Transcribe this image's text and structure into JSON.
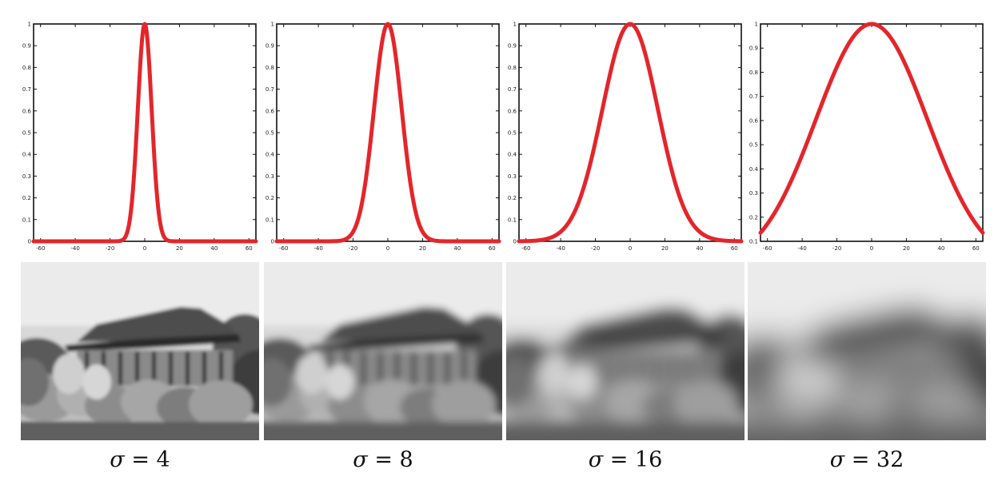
{
  "chart_data": [
    {
      "type": "line",
      "title": "",
      "xlabel": "",
      "ylabel": "",
      "function": "gaussian",
      "sigma": 4,
      "xlim": [
        -64,
        64
      ],
      "ylim": [
        0,
        1
      ],
      "x_ticks": [
        "-60",
        "-40",
        "-20",
        "0",
        "20",
        "40",
        "60"
      ],
      "y_ticks": [
        "0",
        "0.1",
        "0.2",
        "0.3",
        "0.4",
        "0.5",
        "0.6",
        "0.7",
        "0.8",
        "0.9",
        "1"
      ],
      "line_color": "#e3262b",
      "caption_symbol": "σ",
      "caption_value": "= 4"
    },
    {
      "type": "line",
      "title": "",
      "xlabel": "",
      "ylabel": "",
      "function": "gaussian",
      "sigma": 8,
      "xlim": [
        -64,
        64
      ],
      "ylim": [
        0,
        1
      ],
      "x_ticks": [
        "-60",
        "-40",
        "-20",
        "0",
        "20",
        "40",
        "60"
      ],
      "y_ticks": [
        "0",
        "0.1",
        "0.2",
        "0.3",
        "0.4",
        "0.5",
        "0.6",
        "0.7",
        "0.8",
        "0.9",
        "1"
      ],
      "line_color": "#e3262b",
      "caption_symbol": "σ",
      "caption_value": "= 8"
    },
    {
      "type": "line",
      "title": "",
      "xlabel": "",
      "ylabel": "",
      "function": "gaussian",
      "sigma": 16,
      "xlim": [
        -64,
        64
      ],
      "ylim": [
        0,
        1
      ],
      "x_ticks": [
        "-60",
        "-40",
        "-20",
        "0",
        "20",
        "40",
        "60"
      ],
      "y_ticks": [
        "0",
        "0.1",
        "0.2",
        "0.3",
        "0.4",
        "0.5",
        "0.6",
        "0.7",
        "0.8",
        "0.9",
        "1"
      ],
      "line_color": "#e3262b",
      "caption_symbol": "σ",
      "caption_value": "= 16"
    },
    {
      "type": "line",
      "title": "",
      "xlabel": "",
      "ylabel": "",
      "function": "gaussian",
      "sigma": 32,
      "xlim": [
        -64,
        64
      ],
      "ylim": [
        0.1,
        1
      ],
      "x_ticks": [
        "-60",
        "-40",
        "-20",
        "0",
        "20",
        "40",
        "60"
      ],
      "y_ticks": [
        "0.1",
        "0.2",
        "0.3",
        "0.4",
        "0.5",
        "0.6",
        "0.7",
        "0.8",
        "0.9",
        "1"
      ],
      "line_color": "#e3262b",
      "caption_symbol": "σ",
      "caption_value": "= 32"
    }
  ]
}
